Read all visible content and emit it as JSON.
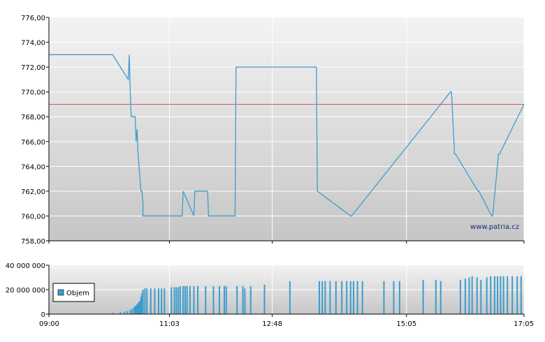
{
  "chart_data": [
    {
      "type": "line",
      "ylim": [
        758,
        776
      ],
      "y_ticks": [
        "776,00",
        "774,00",
        "772,00",
        "770,00",
        "768,00",
        "766,00",
        "764,00",
        "762,00",
        "760,00",
        "758,00"
      ],
      "x_ticks": [
        "09:00",
        "11:03",
        "12:48",
        "15:05",
        "17:05"
      ],
      "grid": true,
      "watermark": "www.patria.cz",
      "colors": {
        "price": "#3d9ccc",
        "reference": "#e0534e"
      },
      "reference_line": 769,
      "series": [
        {
          "times": [
            "09:00",
            "10:05",
            "10:21",
            "10:22",
            "10:23",
            "10:24",
            "10:25",
            "10:28",
            "10:29",
            "10:30",
            "10:31",
            "10:32",
            "10:33",
            "10:34",
            "10:35",
            "10:36",
            "10:36",
            "10:37",
            "10:38",
            "11:03",
            "11:16",
            "11:17",
            "11:28",
            "11:29",
            "11:42",
            "11:43",
            "12:10",
            "12:11",
            "13:33",
            "13:34",
            "14:08",
            "14:09",
            "15:50",
            "15:51",
            "15:54",
            "15:55",
            "16:18",
            "16:19",
            "16:32",
            "16:33",
            "16:39",
            "16:40",
            "17:05"
          ],
          "values": [
            773,
            773,
            771,
            773,
            770,
            768,
            768,
            768,
            766,
            767,
            765,
            764,
            763,
            762,
            762,
            761,
            760,
            760,
            760,
            760,
            760,
            762,
            760,
            762,
            762,
            760,
            760,
            772,
            772,
            762,
            760,
            760,
            770,
            770,
            765,
            765,
            762,
            762,
            760,
            760,
            765,
            765,
            769
          ]
        }
      ]
    },
    {
      "type": "bar",
      "ylim": [
        0,
        40000000
      ],
      "y_ticks": [
        "40 000 000",
        "20 000 000",
        "0"
      ],
      "x_ticks": [
        "09:00",
        "11:03",
        "12:48",
        "15:05",
        "17:05"
      ],
      "grid": true,
      "colors": {
        "bars": "#3d9ccc"
      },
      "series": [
        {
          "name": "Objem",
          "times": [
            "09:50",
            "10:05",
            "10:13",
            "10:17",
            "10:20",
            "10:23",
            "10:25",
            "10:27",
            "10:28",
            "10:29",
            "10:30",
            "10:31",
            "10:32",
            "10:33",
            "10:34",
            "10:35",
            "10:36",
            "10:38",
            "10:40",
            "10:44",
            "10:48",
            "10:52",
            "10:55",
            "10:58",
            "11:05",
            "11:08",
            "11:10",
            "11:12",
            "11:14",
            "11:17",
            "11:19",
            "11:21",
            "11:24",
            "11:28",
            "11:32",
            "11:40",
            "11:48",
            "11:54",
            "11:59",
            "12:01",
            "12:12",
            "12:18",
            "12:20",
            "12:26",
            "12:40",
            "13:06",
            "13:36",
            "13:39",
            "13:42",
            "13:47",
            "13:53",
            "13:59",
            "14:04",
            "14:08",
            "14:11",
            "14:15",
            "14:20",
            "14:42",
            "14:52",
            "14:58",
            "15:22",
            "15:35",
            "15:40",
            "16:00",
            "16:05",
            "16:09",
            "16:12",
            "16:17",
            "16:21",
            "16:27",
            "16:31",
            "16:35",
            "16:38",
            "16:41",
            "16:44",
            "16:48",
            "16:53",
            "16:58",
            "17:02"
          ],
          "values": [
            400000,
            1000000,
            1500000,
            2000000,
            2500000,
            3500000,
            4500000,
            5500000,
            6500000,
            7000000,
            8000000,
            9000000,
            10000000,
            11000000,
            14000000,
            17000000,
            20000000,
            21000000,
            21000000,
            21000000,
            21000000,
            21000000,
            21000000,
            21000000,
            22000000,
            22000000,
            22000000,
            22000000,
            23000000,
            23000000,
            23000000,
            23000000,
            23000000,
            23000000,
            23000000,
            23000000,
            23000000,
            23000000,
            23000000,
            23000000,
            23000000,
            23000000,
            21000000,
            23000000,
            24000000,
            27000000,
            27000000,
            27000000,
            27000000,
            27000000,
            27000000,
            27000000,
            27000000,
            27000000,
            27000000,
            27000000,
            27000000,
            27000000,
            27000000,
            27000000,
            28000000,
            28000000,
            27000000,
            28000000,
            29000000,
            30000000,
            31000000,
            30000000,
            28000000,
            30000000,
            31000000,
            31000000,
            31000000,
            31000000,
            31000000,
            31000000,
            31000000,
            31000000,
            31000000
          ]
        }
      ]
    }
  ]
}
